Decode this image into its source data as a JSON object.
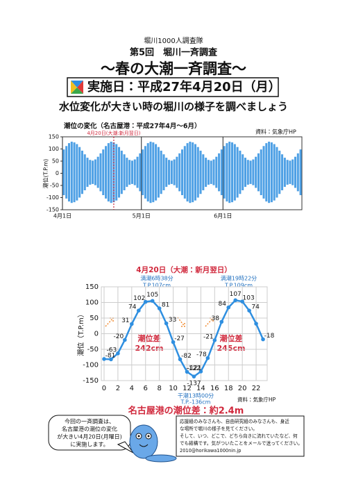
{
  "header": {
    "org": "堀川1000人調査隊",
    "event": "第5回　堀川一斉調査",
    "title": "～春の大潮一斉調査～",
    "date": "実施日：平成27年4月20日（月）",
    "subtitle": "水位変化が大きい時の堀川の様子を調べましょう"
  },
  "chart_data": [
    {
      "type": "range",
      "title": "潮位の変化（名古屋港：平成27年4月～6月）",
      "source": "資料：気象庁HP",
      "y_label": "潮位(T.P.m)",
      "color": "#2f8fe0",
      "annotation": {
        "text": "4月20日(大潮:新月翌日)",
        "x": 19,
        "color": "#d0283c"
      },
      "high": [
        98,
        112,
        124,
        130,
        127,
        120,
        108,
        93,
        78,
        64,
        55,
        52,
        57,
        68,
        82,
        98,
        112,
        124,
        130,
        127,
        120,
        108,
        93,
        78,
        64,
        55,
        52,
        57,
        68,
        82,
        98,
        112,
        124,
        130,
        127,
        120,
        108,
        93,
        78,
        64,
        55,
        52,
        57,
        68,
        82,
        98,
        112,
        124,
        130,
        127,
        120,
        108,
        93,
        78,
        64,
        55,
        52,
        57,
        68,
        82,
        98,
        112,
        124,
        130,
        127,
        120,
        108,
        93,
        78,
        64,
        55,
        52,
        57,
        68,
        82,
        98,
        112,
        124,
        130,
        127,
        120,
        108,
        93,
        78,
        64,
        55,
        52,
        57,
        68,
        82,
        98
      ],
      "low": [
        -90,
        -104,
        -116,
        -122,
        -119,
        -112,
        -100,
        -85,
        -70,
        -56,
        -47,
        -44,
        -49,
        -60,
        -74,
        -90,
        -104,
        -116,
        -122,
        -119,
        -112,
        -100,
        -85,
        -70,
        -56,
        -47,
        -44,
        -49,
        -60,
        -74,
        -90,
        -104,
        -116,
        -122,
        -119,
        -112,
        -100,
        -85,
        -70,
        -56,
        -47,
        -44,
        -49,
        -60,
        -74,
        -90,
        -104,
        -116,
        -122,
        -119,
        -112,
        -100,
        -85,
        -70,
        -56,
        -47,
        -44,
        -49,
        -60,
        -74,
        -90,
        -104,
        -116,
        -122,
        -119,
        -112,
        -100,
        -85,
        -70,
        -56,
        -47,
        -44,
        -49,
        -60,
        -74,
        -90,
        -104,
        -116,
        -122,
        -119,
        -112,
        -100,
        -85,
        -70,
        -56,
        -47,
        -44,
        -49,
        -60,
        -74,
        -90
      ],
      "xlim": [
        0,
        91
      ],
      "xticks": [
        {
          "value": 0,
          "label": "4月1日"
        },
        {
          "value": 30,
          "label": "5月1日"
        },
        {
          "value": 61,
          "label": "6月1日"
        }
      ],
      "xgrid": true,
      "ylim": [
        -150,
        150
      ],
      "yticks": [
        -150,
        -100,
        -50,
        0,
        50,
        100,
        150
      ]
    },
    {
      "type": "line",
      "title": "4月20日（大潮：新月翌日）",
      "source": "資料：気象庁HP",
      "y_label": "潮位（T.P.m）",
      "color": "#2f8fe0",
      "x": [
        0,
        1,
        2,
        3,
        4,
        5,
        6,
        7,
        8,
        9,
        10,
        11,
        12,
        13,
        14,
        15,
        16,
        17,
        18,
        19,
        20,
        21,
        22,
        23
      ],
      "values": [
        -81,
        -82,
        -63,
        -20,
        31,
        74,
        102,
        105,
        81,
        33,
        -27,
        -82,
        -122,
        -137,
        -121,
        -78,
        -21,
        38,
        84,
        107,
        103,
        74,
        32,
        -18
      ],
      "value_labels": [
        "-81",
        null,
        "-63",
        "-20",
        "31",
        "74",
        "102",
        "105",
        "81",
        "33",
        "-27",
        "-82",
        "-122",
        "-137",
        "-121",
        "-78",
        "-21",
        "38",
        "84",
        "107",
        "103",
        "74",
        null,
        "-18"
      ],
      "annotations": {
        "high1": "満潮6時38分",
        "high1_level": "T.P.107cm",
        "high2": "満潮19時22分",
        "high2_level": "T.P.109cm",
        "low": "干潮13時00分",
        "low_level": "T.P.-136cm",
        "diff1_label": "潮位差",
        "diff1": "242cm",
        "diff2_label": "潮位差",
        "diff2": "245cm"
      },
      "xlim": [
        -0.4,
        23.6
      ],
      "xticks": [
        0,
        2,
        4,
        6,
        8,
        10,
        12,
        14,
        16,
        18,
        20,
        22
      ],
      "ylim": [
        -150,
        150
      ],
      "yticks": [
        -150,
        -100,
        -50,
        0,
        50,
        100,
        150
      ],
      "grid": true
    }
  ],
  "footer": {
    "summary": "名古屋港の潮位差：約2.4m",
    "note_left": [
      "今回の一斉調査は、",
      "名古屋港の潮位の変化",
      "が大きい4月20日(月曜日)",
      "に実施します。"
    ],
    "note_right": [
      "応援組のみなさんも、自由研究組のみなさんも、身近",
      "な場所で堀川の様子を見てください。",
      "そして、いつ、どこで、どちら向きに流れていたなど、何",
      "でも結構です。気がついたことをメールで送ってください。",
      "2010@horikawa1000nin.jp"
    ]
  }
}
